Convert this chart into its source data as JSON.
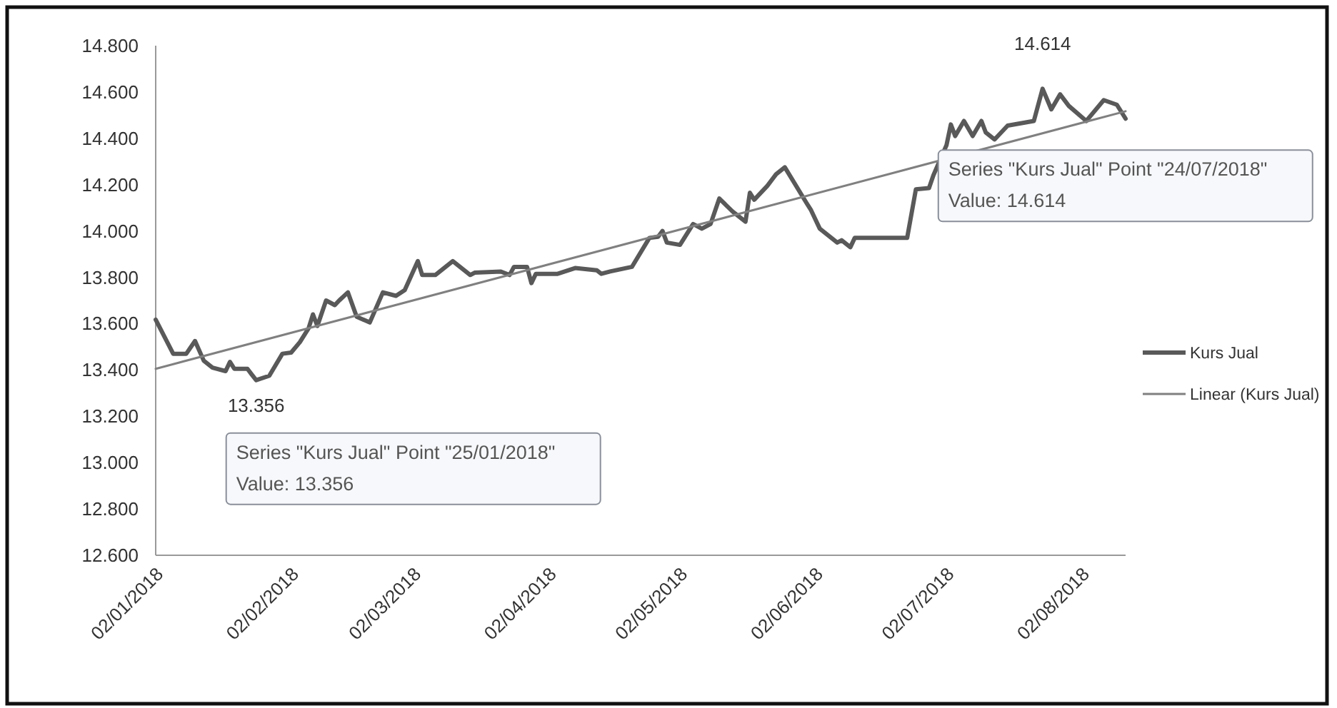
{
  "chart_data": {
    "type": "line",
    "legend": "right",
    "grid": false,
    "xlim": [
      "2018-01-02",
      "2018-08-12"
    ],
    "xticks": [
      {
        "value": "2018-01-02",
        "label": "02/01/2018"
      },
      {
        "value": "2018-02-02",
        "label": "02/02/2018"
      },
      {
        "value": "2018-03-02",
        "label": "02/03/2018"
      },
      {
        "value": "2018-04-02",
        "label": "02/04/2018"
      },
      {
        "value": "2018-05-02",
        "label": "02/05/2018"
      },
      {
        "value": "2018-06-02",
        "label": "02/06/2018"
      },
      {
        "value": "2018-07-02",
        "label": "02/07/2018"
      },
      {
        "value": "2018-08-02",
        "label": "02/08/2018"
      }
    ],
    "ylim": [
      12600,
      14800
    ],
    "yticks": [
      {
        "value": 12600,
        "label": "12.600"
      },
      {
        "value": 12800,
        "label": "12.800"
      },
      {
        "value": 13000,
        "label": "13.000"
      },
      {
        "value": 13200,
        "label": "13.200"
      },
      {
        "value": 13400,
        "label": "13.400"
      },
      {
        "value": 13600,
        "label": "13.600"
      },
      {
        "value": 13800,
        "label": "13.800"
      },
      {
        "value": 14000,
        "label": "14.000"
      },
      {
        "value": 14200,
        "label": "14.200"
      },
      {
        "value": 14400,
        "label": "14.400"
      },
      {
        "value": 14600,
        "label": "14.600"
      },
      {
        "value": 14800,
        "label": "14.800"
      }
    ],
    "series": [
      {
        "name": "Kurs Jual",
        "color": "#595959",
        "x": [
          "2018-01-02",
          "2018-01-06",
          "2018-01-09",
          "2018-01-11",
          "2018-01-13",
          "2018-01-15",
          "2018-01-18",
          "2018-01-19",
          "2018-01-20",
          "2018-01-23",
          "2018-01-24",
          "2018-01-25",
          "2018-01-28",
          "2018-01-31",
          "2018-02-02",
          "2018-02-04",
          "2018-02-06",
          "2018-02-07",
          "2018-02-08",
          "2018-02-10",
          "2018-02-12",
          "2018-02-13",
          "2018-02-15",
          "2018-02-17",
          "2018-02-20",
          "2018-02-23",
          "2018-02-26",
          "2018-02-28",
          "2018-03-03",
          "2018-03-04",
          "2018-03-07",
          "2018-03-11",
          "2018-03-15",
          "2018-03-16",
          "2018-03-22",
          "2018-03-24",
          "2018-03-25",
          "2018-03-28",
          "2018-03-29",
          "2018-03-30",
          "2018-04-04",
          "2018-04-08",
          "2018-04-13",
          "2018-04-14",
          "2018-04-16",
          "2018-04-21",
          "2018-04-25",
          "2018-04-27",
          "2018-04-28",
          "2018-04-29",
          "2018-05-02",
          "2018-05-05",
          "2018-05-07",
          "2018-05-09",
          "2018-05-11",
          "2018-05-14",
          "2018-05-17",
          "2018-05-18",
          "2018-05-19",
          "2018-05-22",
          "2018-05-24",
          "2018-05-26",
          "2018-05-31",
          "2018-06-01",
          "2018-06-03",
          "2018-06-07",
          "2018-06-08",
          "2018-06-10",
          "2018-06-11",
          "2018-06-23",
          "2018-06-25",
          "2018-06-28",
          "2018-06-29",
          "2018-07-02",
          "2018-07-03",
          "2018-07-04",
          "2018-07-06",
          "2018-07-08",
          "2018-07-10",
          "2018-07-11",
          "2018-07-13",
          "2018-07-16",
          "2018-07-19",
          "2018-07-22",
          "2018-07-24",
          "2018-07-26",
          "2018-07-28",
          "2018-07-30",
          "2018-08-03",
          "2018-08-07",
          "2018-08-10",
          "2018-08-12"
        ],
        "values": [
          13617,
          13470,
          13470,
          13525,
          13440,
          13410,
          13395,
          13435,
          13405,
          13405,
          13380,
          13356,
          13375,
          13470,
          13475,
          13520,
          13580,
          13640,
          13590,
          13700,
          13680,
          13700,
          13735,
          13630,
          13605,
          13735,
          13720,
          13745,
          13870,
          13810,
          13810,
          13870,
          13810,
          13820,
          13825,
          13810,
          13845,
          13845,
          13775,
          13815,
          13815,
          13840,
          13830,
          13815,
          13825,
          13845,
          13970,
          13975,
          14000,
          13950,
          13940,
          14030,
          14010,
          14030,
          14140,
          14085,
          14040,
          14165,
          14135,
          14195,
          14245,
          14275,
          14120,
          14090,
          14010,
          13950,
          13960,
          13930,
          13970,
          13970,
          14180,
          14185,
          14240,
          14370,
          14460,
          14410,
          14475,
          14410,
          14475,
          14425,
          14395,
          14455,
          14465,
          14475,
          14614,
          14525,
          14590,
          14540,
          14475,
          14565,
          14545,
          14485
        ]
      },
      {
        "name": "Linear (Kurs Jual)",
        "color": "#808080",
        "x": [
          "2018-01-02",
          "2018-08-12"
        ],
        "values": [
          13405,
          14517
        ]
      }
    ],
    "annotations": [
      {
        "text": "13.356",
        "x": "2018-01-25",
        "y": 13356
      },
      {
        "text": "14.614",
        "x": "2018-07-24",
        "y": 14614
      },
      "Series \"Kurs Jual\" Point \"25/01/2018\"\nValue: 13.356",
      "Series \"Kurs Jual\" Point \"24/07/2018\"\nValue: 14.614"
    ]
  }
}
